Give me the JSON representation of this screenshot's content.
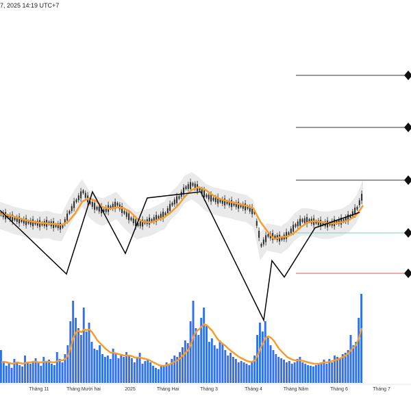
{
  "header": {
    "text": "7, 2025 14:19 UTC+7"
  },
  "colors": {
    "bar": "#2f6ff2",
    "ma": "#f29d2e",
    "candle": "#2a2a2a",
    "zigzag": "#000000",
    "band": "#d9d9d9",
    "level": "#333333",
    "level_green": "#7ecfc6",
    "level_red": "#e05555"
  },
  "chart_data": {
    "type": "line",
    "title": "",
    "x_ticks": [
      "Tháng 11",
      "Tháng Mười hai",
      "2025",
      "Tháng Hai",
      "Tháng 3",
      "Tháng 4",
      "Tháng Năm",
      "Tháng 6",
      "Tháng 7"
    ],
    "price_series": {
      "description": "relative price path (0 = top of price pane, 100 = bottom)",
      "x": [
        0,
        10,
        20,
        30,
        40,
        50,
        60,
        70,
        80,
        90,
        100,
        110,
        120,
        130,
        140,
        150,
        160,
        170,
        180,
        190,
        200,
        210,
        220,
        230,
        240,
        250,
        260,
        270,
        280,
        290,
        300,
        310,
        320,
        330,
        340,
        350,
        360,
        370,
        380,
        390,
        400,
        410,
        420,
        430,
        440,
        450,
        460,
        470,
        480,
        490,
        500,
        510,
        520,
        530
      ],
      "values": [
        52,
        55,
        58,
        60,
        62,
        63,
        64,
        63,
        66,
        67,
        50,
        36,
        25,
        38,
        45,
        48,
        44,
        40,
        50,
        58,
        65,
        62,
        60,
        56,
        52,
        40,
        32,
        20,
        16,
        22,
        30,
        34,
        36,
        38,
        40,
        42,
        44,
        50,
        90,
        78,
        80,
        82,
        76,
        66,
        60,
        60,
        62,
        64,
        64,
        62,
        60,
        55,
        45,
        25
      ]
    },
    "zigzag": {
      "x": [
        0,
        97,
        135,
        183,
        215,
        293,
        385,
        397,
        415,
        460,
        525
      ],
      "values": [
        38,
        100,
        20,
        80,
        26,
        20,
        145,
        87,
        103,
        55,
        40
      ]
    },
    "levels": [
      {
        "value": 0,
        "color": "level"
      },
      {
        "value": 1,
        "color": "level"
      },
      {
        "value": 2,
        "color": "level"
      },
      {
        "value": 3,
        "color": "level_green"
      },
      {
        "value": 4,
        "color": "level_red"
      }
    ],
    "volume": {
      "values": [
        48,
        30,
        25,
        28,
        22,
        35,
        30,
        26,
        24,
        40,
        30,
        28,
        32,
        36,
        30,
        25,
        38,
        30,
        34,
        28,
        26,
        45,
        35,
        30,
        42,
        55,
        90,
        120,
        95,
        80,
        70,
        110,
        75,
        88,
        60,
        50,
        48,
        55,
        42,
        38,
        40,
        35,
        50,
        44,
        36,
        42,
        38,
        45,
        40,
        36,
        30,
        38,
        44,
        28,
        32,
        34,
        30,
        25,
        22,
        20,
        24,
        26,
        30,
        28,
        35,
        40,
        38,
        45,
        52,
        62,
        58,
        90,
        120,
        80,
        70,
        95,
        110,
        85,
        60,
        65,
        55,
        50,
        62,
        58,
        48,
        40,
        44,
        38,
        35,
        30,
        32,
        30,
        28,
        26,
        30,
        40,
        70,
        88,
        75,
        90,
        66,
        55,
        48,
        42,
        38,
        36,
        34,
        30,
        32,
        28,
        30,
        35,
        38,
        30,
        28,
        26,
        25,
        24,
        26,
        28,
        30,
        34,
        28,
        35,
        30,
        40,
        38,
        36,
        42,
        44,
        48,
        70,
        55,
        60,
        95,
        130
      ],
      "ma": [
        30,
        31,
        30,
        29,
        28,
        29,
        30,
        29,
        28,
        29,
        30,
        30,
        31,
        31,
        30,
        30,
        31,
        31,
        31,
        30,
        30,
        32,
        33,
        33,
        35,
        40,
        52,
        66,
        74,
        76,
        74,
        78,
        77,
        78,
        74,
        68,
        62,
        58,
        54,
        50,
        47,
        44,
        44,
        43,
        42,
        41,
        40,
        40,
        40,
        39,
        37,
        37,
        37,
        36,
        35,
        34,
        32,
        30,
        28,
        26,
        25,
        25,
        26,
        27,
        29,
        31,
        33,
        36,
        40,
        44,
        48,
        56,
        68,
        75,
        78,
        82,
        86,
        84,
        80,
        76,
        70,
        64,
        60,
        57,
        54,
        50,
        47,
        44,
        41,
        38,
        36,
        34,
        32,
        31,
        31,
        33,
        40,
        50,
        58,
        66,
        68,
        66,
        62,
        56,
        50,
        46,
        42,
        38,
        36,
        34,
        33,
        33,
        33,
        32,
        31,
        30,
        29,
        28,
        28,
        28,
        29,
        30,
        30,
        31,
        32,
        33,
        34,
        36,
        38,
        40,
        43,
        48,
        52,
        56,
        66,
        80
      ]
    }
  }
}
